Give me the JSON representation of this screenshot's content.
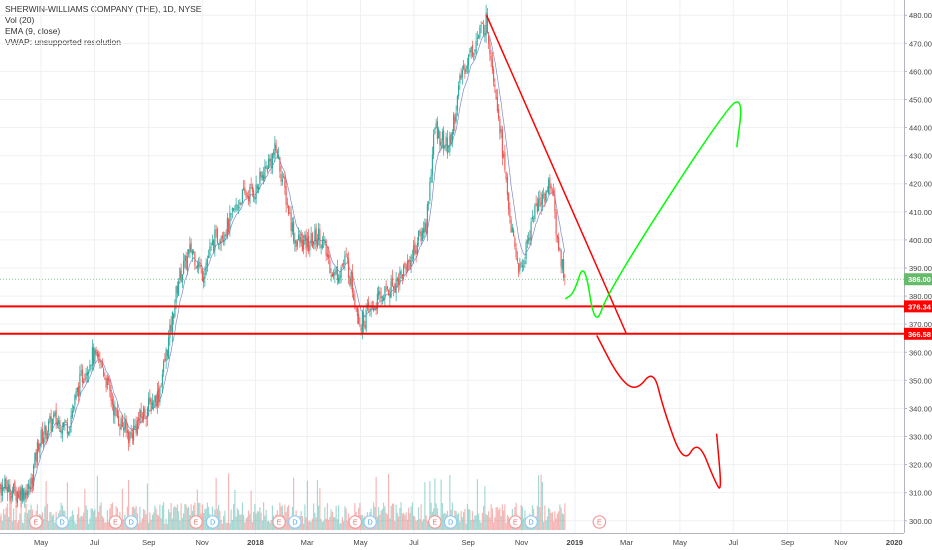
{
  "legend": {
    "symbol_line": "SHERWIN-WILLIAMS COMPANY (THE), 1D, NYSE",
    "vol_line": "Vol (20)",
    "ema_line": "EMA (9, close)",
    "vwap_line": "VWAP: unsupported resolution"
  },
  "colors": {
    "up_candle": "#26a69a",
    "down_candle": "#ef5350",
    "level_line": "#ff0000",
    "current_price_tag": "#66bb6a",
    "bearish_path": "#ff0000",
    "bullish_path": "#00ff00",
    "ema_line": "#5c6bc0"
  },
  "chart_data": {
    "type": "candlestick",
    "title": "SHERWIN-WILLIAMS COMPANY (THE), 1D, NYSE",
    "ylim": [
      296,
      484
    ],
    "y_ticks": [
      "300.00",
      "310.00",
      "320.00",
      "330.00",
      "340.00",
      "350.00",
      "360.00",
      "370.00",
      "380.00",
      "390.00",
      "400.00",
      "410.00",
      "420.00",
      "430.00",
      "440.00",
      "450.00",
      "460.00",
      "470.00",
      "480.00"
    ],
    "x_ticks": [
      "May",
      "Jul",
      "Sep",
      "Nov",
      "2018",
      "Mar",
      "May",
      "Jul",
      "Sep",
      "Nov",
      "2019",
      "Mar",
      "May",
      "Jul",
      "Sep",
      "Nov",
      "2020"
    ],
    "price_path": [
      {
        "date": "2017-03-20",
        "close": 312
      },
      {
        "date": "2017-04-03",
        "close": 310
      },
      {
        "date": "2017-04-18",
        "close": 311
      },
      {
        "date": "2017-04-28",
        "close": 328
      },
      {
        "date": "2017-05-15",
        "close": 336
      },
      {
        "date": "2017-06-01",
        "close": 334
      },
      {
        "date": "2017-06-15",
        "close": 350
      },
      {
        "date": "2017-06-28",
        "close": 359
      },
      {
        "date": "2017-07-10",
        "close": 355
      },
      {
        "date": "2017-07-25",
        "close": 338
      },
      {
        "date": "2017-08-10",
        "close": 330
      },
      {
        "date": "2017-08-25",
        "close": 338
      },
      {
        "date": "2017-09-12",
        "close": 345
      },
      {
        "date": "2017-09-25",
        "close": 366
      },
      {
        "date": "2017-10-05",
        "close": 386
      },
      {
        "date": "2017-10-20",
        "close": 397
      },
      {
        "date": "2017-11-01",
        "close": 388
      },
      {
        "date": "2017-11-15",
        "close": 400
      },
      {
        "date": "2017-12-01",
        "close": 405
      },
      {
        "date": "2017-12-15",
        "close": 415
      },
      {
        "date": "2018-01-02",
        "close": 418
      },
      {
        "date": "2018-01-15",
        "close": 427
      },
      {
        "date": "2018-01-25",
        "close": 432
      },
      {
        "date": "2018-02-05",
        "close": 415
      },
      {
        "date": "2018-02-15",
        "close": 400
      },
      {
        "date": "2018-03-01",
        "close": 398
      },
      {
        "date": "2018-03-15",
        "close": 402
      },
      {
        "date": "2018-04-01",
        "close": 387
      },
      {
        "date": "2018-04-15",
        "close": 393
      },
      {
        "date": "2018-05-01",
        "close": 370
      },
      {
        "date": "2018-05-10",
        "close": 374
      },
      {
        "date": "2018-05-25",
        "close": 380
      },
      {
        "date": "2018-06-10",
        "close": 385
      },
      {
        "date": "2018-06-25",
        "close": 392
      },
      {
        "date": "2018-07-05",
        "close": 399
      },
      {
        "date": "2018-07-15",
        "close": 406
      },
      {
        "date": "2018-07-25",
        "close": 440
      },
      {
        "date": "2018-08-10",
        "close": 432
      },
      {
        "date": "2018-08-25",
        "close": 460
      },
      {
        "date": "2018-09-12",
        "close": 472
      },
      {
        "date": "2018-09-22",
        "close": 478
      },
      {
        "date": "2018-10-05",
        "close": 448
      },
      {
        "date": "2018-10-15",
        "close": 418
      },
      {
        "date": "2018-10-23",
        "close": 398
      },
      {
        "date": "2018-10-31",
        "close": 388
      },
      {
        "date": "2018-11-05",
        "close": 395
      },
      {
        "date": "2018-11-15",
        "close": 410
      },
      {
        "date": "2018-11-25",
        "close": 415
      },
      {
        "date": "2018-12-05",
        "close": 421
      },
      {
        "date": "2018-12-12",
        "close": 400
      },
      {
        "date": "2018-12-21",
        "close": 386
      }
    ],
    "current_price": {
      "label": "386.00",
      "value": 386.0
    },
    "horizontal_levels": [
      {
        "label": "376.34",
        "value": 376.34
      },
      {
        "label": "366.58",
        "value": 366.58
      }
    ],
    "trendline": [
      {
        "date": "2018-09-22",
        "price": 480
      },
      {
        "date": "2019-03-01",
        "price": 366.5
      }
    ],
    "bullish_path": [
      {
        "date": "2018-12-21",
        "price": 379
      },
      {
        "date": "2018-12-31",
        "price": 381
      },
      {
        "date": "2019-01-12",
        "price": 393
      },
      {
        "date": "2019-01-24",
        "price": 368
      },
      {
        "date": "2019-02-08",
        "price": 382
      },
      {
        "date": "2019-06-25",
        "price": 448
      },
      {
        "date": "2019-07-12",
        "price": 450
      },
      {
        "date": "2019-07-05",
        "price": 433
      }
    ],
    "bearish_path": [
      {
        "date": "2019-01-26",
        "price": 366
      },
      {
        "date": "2019-02-20",
        "price": 351
      },
      {
        "date": "2019-03-12",
        "price": 346
      },
      {
        "date": "2019-04-01",
        "price": 354
      },
      {
        "date": "2019-04-12",
        "price": 340
      },
      {
        "date": "2019-05-05",
        "price": 320
      },
      {
        "date": "2019-05-22",
        "price": 329
      },
      {
        "date": "2019-06-10",
        "price": 314
      },
      {
        "date": "2019-06-18",
        "price": 310
      },
      {
        "date": "2019-06-12",
        "price": 331
      }
    ],
    "earnings_markers": [
      {
        "date": "2017-04-25",
        "label": "E"
      },
      {
        "date": "2017-05-25",
        "label": "D"
      },
      {
        "date": "2017-07-25",
        "label": "E"
      },
      {
        "date": "2017-08-12",
        "label": "D"
      },
      {
        "date": "2017-10-25",
        "label": "E"
      },
      {
        "date": "2017-11-13",
        "label": "D"
      },
      {
        "date": "2018-01-28",
        "label": "E"
      },
      {
        "date": "2018-02-15",
        "label": "D"
      },
      {
        "date": "2018-04-25",
        "label": "E"
      },
      {
        "date": "2018-05-12",
        "label": "D"
      },
      {
        "date": "2018-07-25",
        "label": "E"
      },
      {
        "date": "2018-08-12",
        "label": "D"
      },
      {
        "date": "2018-10-25",
        "label": "E"
      },
      {
        "date": "2018-11-12",
        "label": "D"
      },
      {
        "date": "2019-01-29",
        "label": "E"
      }
    ]
  }
}
